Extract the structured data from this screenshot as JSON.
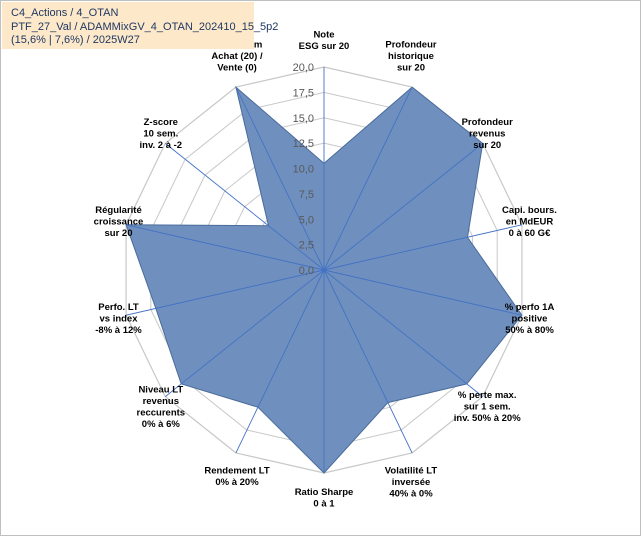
{
  "info_box": {
    "line1": "C4_Actions / 4_OTAN",
    "line2": "PTF_27_Val / ADAMMixGV_4_OTAN_202410_15_5p2",
    "line3": "(15,6% | 7,6%) / 2025W27"
  },
  "chart_data": {
    "type": "radar",
    "title": "",
    "rmin": 0,
    "rmax": 20,
    "tick_values": [
      0,
      2.5,
      5,
      7.5,
      10,
      12.5,
      15,
      17.5,
      20
    ],
    "tick_labels": [
      "0,0",
      "2,5",
      "5,0",
      "7,5",
      "10,0",
      "12,5",
      "15,0",
      "17,5",
      "20,0"
    ],
    "grid": true,
    "fill_color": "#6f90be",
    "line_color": "#4a6c9b",
    "grid_color": "#c8c8c8",
    "spoke_color": "#4472c4",
    "axes": [
      {
        "lines": [
          "Note",
          "ESG sur 20"
        ],
        "value": 10.5
      },
      {
        "lines": [
          "Profondeur",
          "historique",
          "sur 20"
        ],
        "value": 20
      },
      {
        "lines": [
          "Profondeur",
          "revenus",
          "sur 20"
        ],
        "value": 20
      },
      {
        "lines": [
          "Capi. bours.",
          "en MdEUR",
          "0 à 60 G€"
        ],
        "value": 14.5
      },
      {
        "lines": [
          "% perfo 1A",
          "positive",
          "50% à 80%"
        ],
        "value": 20
      },
      {
        "lines": [
          "% perte max.",
          "sur 1 sem.",
          "inv. 50% à 20%"
        ],
        "value": 18
      },
      {
        "lines": [
          "Volatilité LT",
          "inversée",
          "40% à 0%"
        ],
        "value": 14.5
      },
      {
        "lines": [
          "Ratio Sharpe",
          "0 à 1"
        ],
        "value": 20
      },
      {
        "lines": [
          "Rendement LT",
          "0% à 20%"
        ],
        "value": 15
      },
      {
        "lines": [
          "Niveau LT",
          "revenus",
          "reccurents",
          "0% à 6%"
        ],
        "value": 18
      },
      {
        "lines": [
          "Perfo. LT",
          "vs index",
          "-8% à 12%"
        ],
        "value": 17
      },
      {
        "lines": [
          "Régularité",
          "croissance",
          "sur 20"
        ],
        "value": 20
      },
      {
        "lines": [
          "Z-score",
          "10 sem.",
          "inv. 2 à -2"
        ],
        "value": 7
      },
      {
        "lines": [
          "Momentum",
          "Achat (20) /",
          "Vente (0)"
        ],
        "value": 20
      }
    ]
  }
}
